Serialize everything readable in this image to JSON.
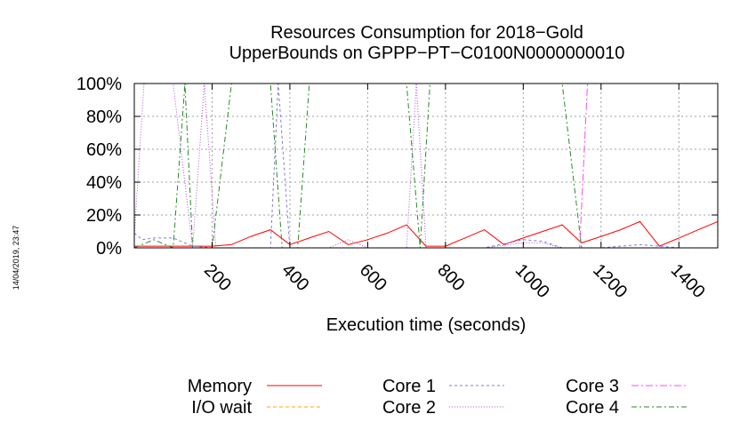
{
  "chart_data": {
    "type": "line",
    "title_line1": "Resources Consumption for 2018−Gold",
    "title_line2": "UpperBounds on GPPP−PT−C0100N0000000010",
    "xlabel": "Execution time (seconds)",
    "ylabel": "",
    "timestamp": "14/04/2019, 23:47",
    "xlim": [
      0,
      1500
    ],
    "ylim": [
      0,
      100
    ],
    "grid": true,
    "legend_position": "bottom",
    "x_ticks": [
      {
        "value": 200,
        "label": "200"
      },
      {
        "value": 400,
        "label": "400"
      },
      {
        "value": 600,
        "label": "600"
      },
      {
        "value": 800,
        "label": "800"
      },
      {
        "value": 1000,
        "label": "1000"
      },
      {
        "value": 1200,
        "label": "1200"
      },
      {
        "value": 1400,
        "label": "1400"
      }
    ],
    "y_ticks": [
      {
        "value": 0,
        "label": "0%"
      },
      {
        "value": 20,
        "label": "20%"
      },
      {
        "value": 40,
        "label": "40%"
      },
      {
        "value": 60,
        "label": "60%"
      },
      {
        "value": 80,
        "label": "80%"
      },
      {
        "value": 100,
        "label": "100%"
      }
    ],
    "series": [
      {
        "name": "Memory",
        "color": "#ff0000",
        "dash": "",
        "x": [
          0,
          50,
          100,
          150,
          200,
          250,
          300,
          350,
          400,
          450,
          500,
          550,
          600,
          650,
          700,
          750,
          800,
          850,
          900,
          950,
          1000,
          1050,
          1100,
          1150,
          1200,
          1250,
          1300,
          1350,
          1400,
          1450,
          1500
        ],
        "y": [
          1,
          1,
          1,
          1,
          1,
          2,
          7,
          11,
          2,
          6,
          10,
          2,
          5,
          9,
          14,
          1,
          1,
          6,
          11,
          2,
          6,
          10,
          14,
          3,
          7,
          11,
          16,
          1,
          6,
          11,
          16
        ]
      },
      {
        "name": "I/O wait",
        "color": "#ffa500",
        "dash": "4,3",
        "x": [
          0,
          1500
        ],
        "y": [
          0,
          0
        ]
      },
      {
        "name": "Core 1",
        "color": "#7b7bd8",
        "dash": "3,3",
        "x": [
          0,
          20,
          50,
          100,
          150,
          200,
          250,
          300,
          350,
          370,
          400,
          450,
          500,
          550,
          600,
          700,
          720,
          750,
          800,
          900,
          1000,
          1050,
          1100,
          1150,
          1200,
          1300,
          1400,
          1500
        ],
        "y": [
          9,
          5,
          6,
          6,
          1,
          0,
          0,
          0,
          0,
          100,
          0,
          0,
          0,
          0,
          0,
          0,
          0,
          0,
          0,
          0,
          5,
          4,
          0,
          0,
          0,
          2,
          0,
          0
        ]
      },
      {
        "name": "Core 2",
        "color": "#b04fd4",
        "dash": "1,2",
        "x": [
          0,
          25,
          100,
          150,
          180,
          210,
          240,
          300,
          350,
          400,
          450,
          500,
          550,
          600,
          650,
          700,
          725,
          750,
          800,
          900,
          1000,
          1050,
          1100,
          1500
        ],
        "y": [
          7,
          100,
          100,
          0,
          100,
          0,
          0,
          0,
          0,
          0,
          0,
          0,
          5,
          0,
          0,
          0,
          100,
          0,
          0,
          0,
          3,
          3,
          0,
          0
        ]
      },
      {
        "name": "Core 3",
        "color": "#ff44ff",
        "dash": "8,3,2,3",
        "x": [
          0,
          1100,
          1145,
          1165,
          1500
        ],
        "y": [
          0,
          0,
          0,
          100,
          100
        ]
      },
      {
        "name": "Core 4",
        "color": "#2a8a2a",
        "dash": "6,3,2,3",
        "x": [
          0,
          50,
          100,
          130,
          150,
          200,
          250,
          300,
          350,
          380,
          420,
          450,
          500,
          550,
          600,
          650,
          700,
          735,
          760,
          800,
          850,
          900,
          950,
          1000,
          1050,
          1100,
          1150,
          1200,
          1300,
          1400,
          1500
        ],
        "y": [
          0,
          5,
          0,
          100,
          0,
          0,
          100,
          100,
          100,
          0,
          0,
          100,
          100,
          100,
          100,
          100,
          100,
          0,
          100,
          100,
          100,
          100,
          100,
          100,
          100,
          100,
          0,
          0,
          0,
          0,
          0
        ]
      }
    ]
  }
}
